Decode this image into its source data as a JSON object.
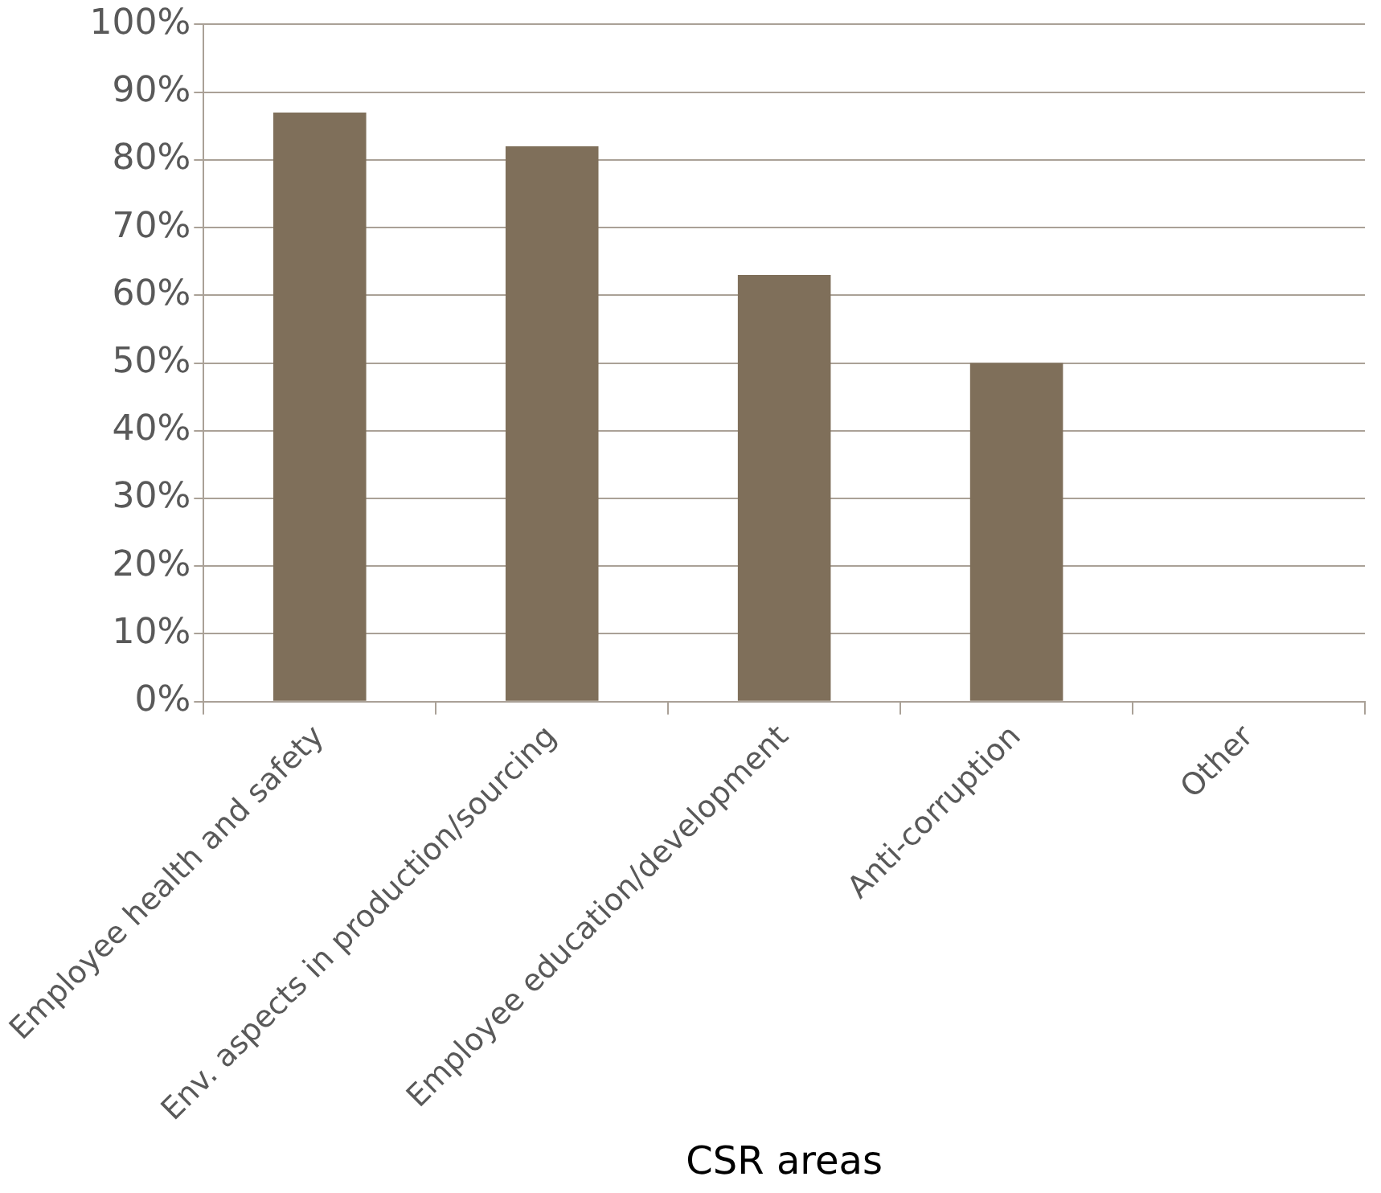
{
  "chart_data": {
    "type": "bar",
    "xlabel": "CSR areas",
    "categories": [
      "Employee health and safety",
      "Env. aspects in production/sourcing",
      "Employee education/development",
      "Anti-corruption",
      "Other"
    ],
    "values": [
      87,
      82,
      63,
      50,
      0
    ],
    "color": "#7f6f5a",
    "ylim": [
      0,
      100
    ],
    "yticks": [
      {
        "value": 0,
        "label": "0%"
      },
      {
        "value": 10,
        "label": "10%"
      },
      {
        "value": 20,
        "label": "20%"
      },
      {
        "value": 30,
        "label": "30%"
      },
      {
        "value": 40,
        "label": "40%"
      },
      {
        "value": 50,
        "label": "50%"
      },
      {
        "value": 60,
        "label": "60%"
      },
      {
        "value": 70,
        "label": "70%"
      },
      {
        "value": 80,
        "label": "80%"
      },
      {
        "value": 90,
        "label": "90%"
      },
      {
        "value": 100,
        "label": "100%"
      }
    ],
    "grid": "y",
    "legend": false
  }
}
